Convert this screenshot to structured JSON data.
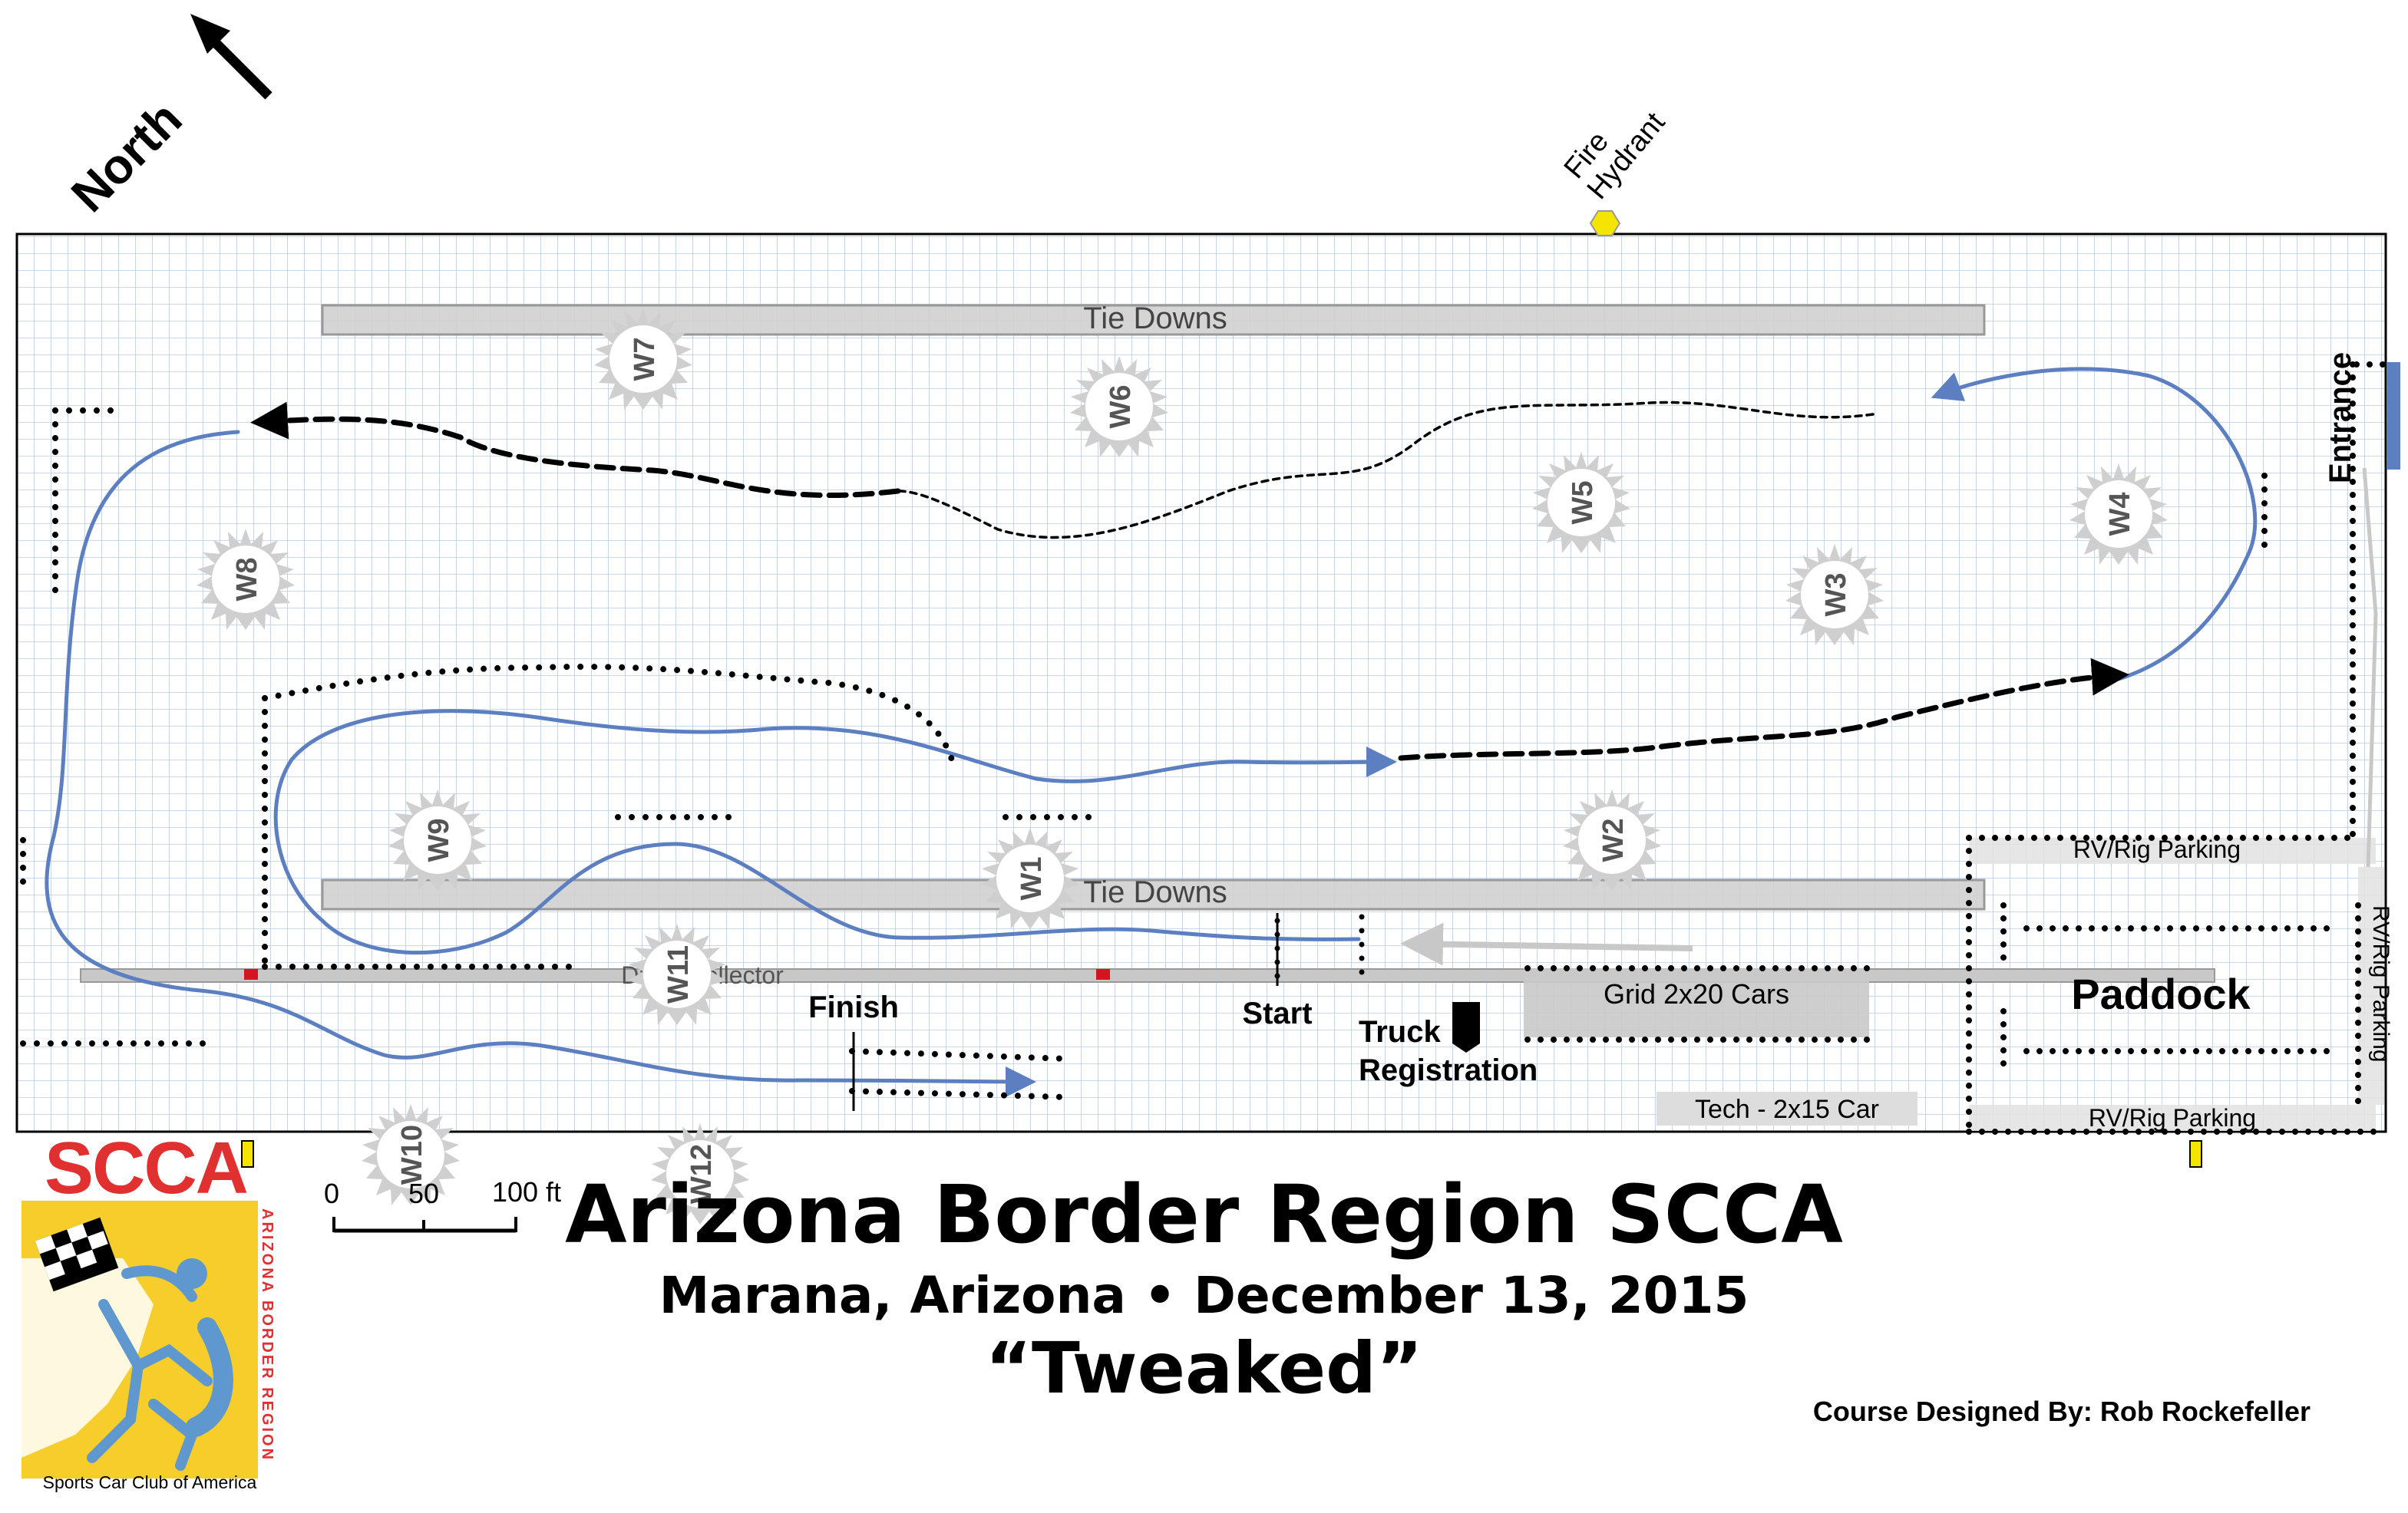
{
  "north_label": "North",
  "fire_hydrant": [
    "Fire",
    "Hydrant"
  ],
  "entrance_label": "Entrance",
  "tie_downs_top": "Tie Downs",
  "tie_downs_bottom": "Tie Downs",
  "drain_collector": "Drain Collector",
  "finish_label": "Finish",
  "start_label": "Start",
  "truck_label": "Truck",
  "registration_label": "Registration",
  "grid_label": "Grid 2x20 Cars",
  "tech_label": "Tech - 2x15 Car",
  "paddock_label": "Paddock",
  "rv_top": "RV/Rig Parking",
  "rv_bottom": "RV/Rig Parking",
  "rv_side": "RV/Rig Parking",
  "workers": [
    "W1",
    "W2",
    "W3",
    "W4",
    "W5",
    "W6",
    "W7",
    "W8",
    "W9",
    "W10",
    "W11",
    "W12"
  ],
  "scale": {
    "zero": "0",
    "mid": "50",
    "end": "100 ft"
  },
  "title": "Arizona Border Region SCCA",
  "subtitle": "Marana, Arizona • December 13, 2015",
  "event_name": "“Tweaked”",
  "designer": "Course Designed By:  Rob Rockefeller",
  "logo": {
    "main": "SCCA",
    "side": "ARIZONA BORDER REGION",
    "bottom": "Sports Car Club of America"
  },
  "colors": {
    "course": "#5b7fc0",
    "grid": "#b8cbe4",
    "tie_down": "#d0d0d0",
    "hydrant": "#f5e400",
    "logo_red": "#e03030",
    "logo_yellow": "#f6cd2a"
  }
}
